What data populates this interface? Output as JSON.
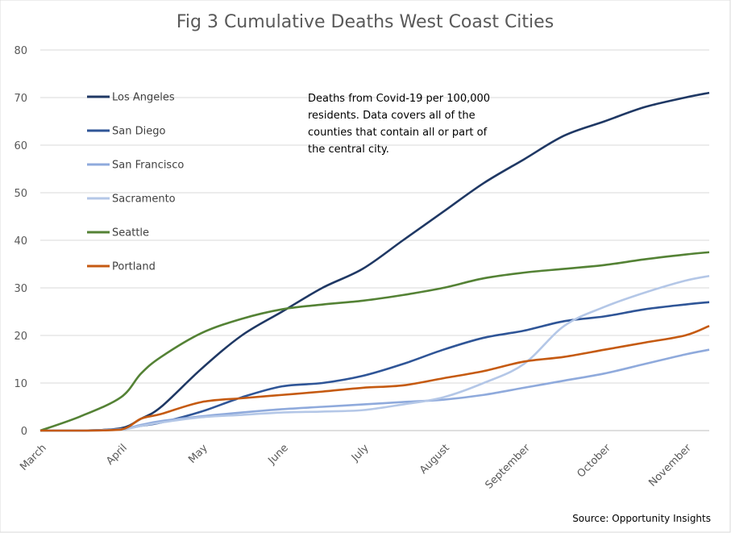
{
  "chart_data": {
    "type": "line",
    "title": "Fig 3 Cumulative Deaths West Coast Cities",
    "xlabel": "",
    "ylabel": "",
    "ylim": [
      0,
      80
    ],
    "yticks": [
      "0",
      "10",
      "20",
      "30",
      "40",
      "50",
      "60",
      "70",
      "80"
    ],
    "xticks": [
      "March",
      "April",
      "May",
      "June",
      "July",
      "August",
      "September",
      "October",
      "November"
    ],
    "grid": true,
    "legend_position": "upper-left",
    "annotation": "Deaths from Covid-19 per 100,000 residents. Data covers all of the counties that contain all or part of the central city.",
    "annotation_lines": [
      "Deaths from Covid-19 per 100,000",
      "residents. Data covers all of the",
      "counties that contain all or part of",
      "the central city."
    ],
    "source": "Source: Opportunity Insights",
    "x_months": [
      0,
      0.5,
      1,
      1.25,
      1.5,
      2,
      2.5,
      3,
      3.5,
      4,
      4.5,
      5,
      5.5,
      6,
      6.5,
      7,
      7.5,
      8,
      8.3
    ],
    "series": [
      {
        "name": "Los Angeles",
        "color": "#1f3864",
        "values": [
          0,
          0,
          0.5,
          2.5,
          5,
          13,
          20,
          25,
          30,
          34,
          40,
          46,
          52,
          57,
          62,
          65,
          68,
          70,
          71
        ]
      },
      {
        "name": "San Diego",
        "color": "#2f5597",
        "values": [
          0,
          0,
          0.3,
          1,
          1.7,
          4,
          7,
          9.3,
          10,
          11.5,
          14,
          17,
          19.5,
          21,
          23,
          24,
          25.5,
          26.5,
          27
        ]
      },
      {
        "name": "San Francisco",
        "color": "#8faadc",
        "values": [
          0,
          0,
          0.3,
          1.2,
          2,
          3,
          3.8,
          4.5,
          5,
          5.5,
          6,
          6.5,
          7.5,
          9,
          10.5,
          12,
          14,
          16,
          17
        ]
      },
      {
        "name": "Sacramento",
        "color": "#b4c7e7",
        "values": [
          0,
          0,
          0.2,
          1,
          1.7,
          2.8,
          3.3,
          3.8,
          4,
          4.3,
          5.5,
          7,
          10,
          14,
          22,
          26,
          29,
          31.5,
          32.5
        ]
      },
      {
        "name": "Seattle",
        "color": "#548235",
        "values": [
          0,
          3,
          7,
          12,
          15.5,
          20.5,
          23.5,
          25.5,
          26.5,
          27.3,
          28.5,
          30,
          32,
          33.2,
          34,
          34.8,
          36,
          37,
          37.5
        ]
      },
      {
        "name": "Portland",
        "color": "#c55a11",
        "values": [
          0,
          0,
          0.2,
          2.5,
          3.5,
          6,
          6.8,
          7.5,
          8.2,
          9,
          9.5,
          11,
          12.5,
          14.5,
          15.5,
          17,
          18.5,
          20,
          22
        ]
      }
    ]
  }
}
